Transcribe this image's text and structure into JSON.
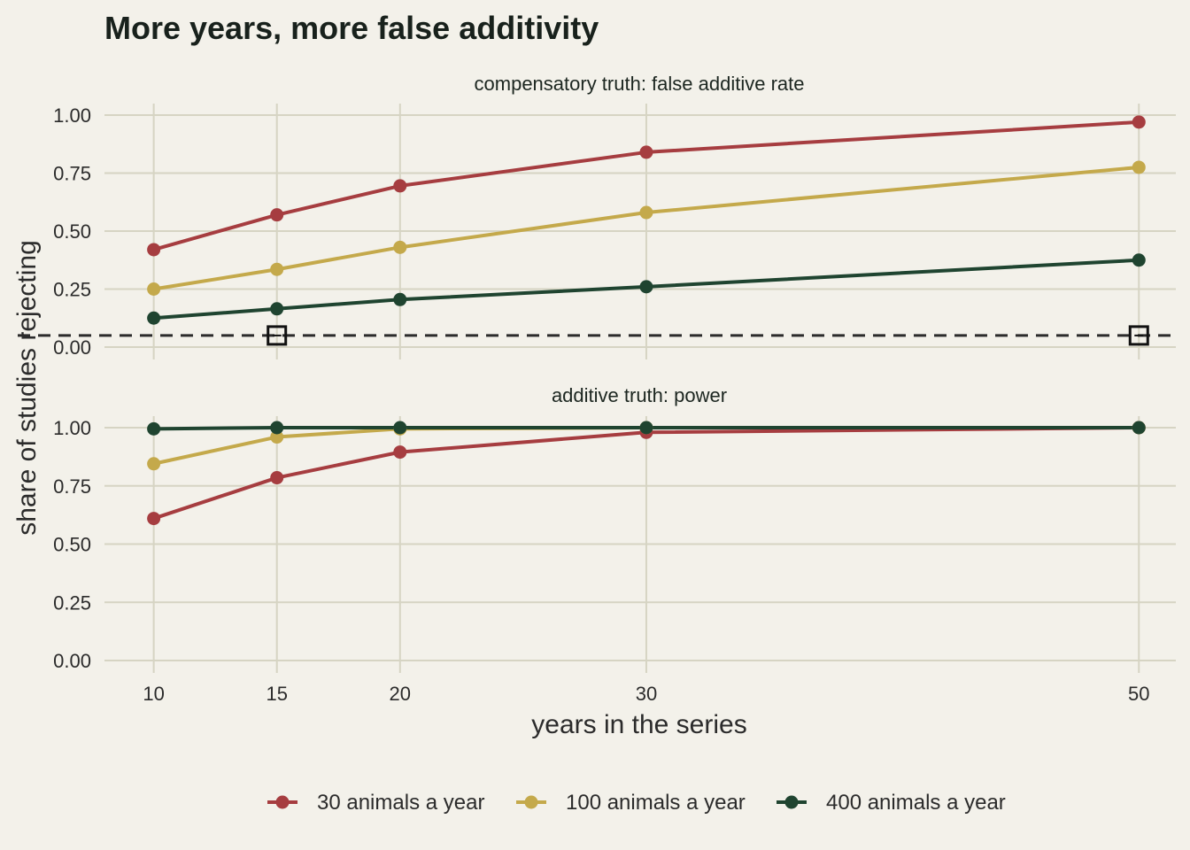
{
  "chart_data": {
    "type": "line",
    "title": "More years, more false additivity",
    "xlabel": "years in the series",
    "ylabel": "share of studies rejecting",
    "x": [
      10,
      15,
      20,
      30,
      50
    ],
    "x_ticks": [
      "10",
      "15",
      "20",
      "30",
      "50"
    ],
    "xlim": [
      8,
      51.5
    ],
    "ylim": [
      0,
      1
    ],
    "y_ticks": [
      "0.00",
      "0.25",
      "0.50",
      "0.75",
      "1.00"
    ],
    "grid": true,
    "legend_position": "bottom",
    "series_colors": [
      "#a63d40",
      "#c4a94b",
      "#1f4430"
    ],
    "legend": [
      "30 animals a year",
      "100 animals a year",
      "400 animals a year"
    ],
    "reference_line": 0.05,
    "reference_markers_x": [
      15,
      50
    ],
    "panels": [
      {
        "label": "compensatory truth: false additive rate",
        "series": [
          {
            "name": "30 animals a year",
            "values": [
              0.42,
              0.57,
              0.695,
              0.84,
              0.97
            ]
          },
          {
            "name": "100 animals a year",
            "values": [
              0.25,
              0.335,
              0.43,
              0.58,
              0.775
            ]
          },
          {
            "name": "400 animals a year",
            "values": [
              0.125,
              0.165,
              0.205,
              0.26,
              0.375
            ]
          }
        ]
      },
      {
        "label": "additive truth: power",
        "series": [
          {
            "name": "30 animals a year",
            "values": [
              0.61,
              0.785,
              0.895,
              0.98,
              1.0
            ]
          },
          {
            "name": "100 animals a year",
            "values": [
              0.845,
              0.96,
              0.995,
              1.0,
              1.0
            ]
          },
          {
            "name": "400 animals a year",
            "values": [
              0.995,
              1.0,
              1.0,
              1.0,
              1.0
            ]
          }
        ]
      }
    ]
  }
}
